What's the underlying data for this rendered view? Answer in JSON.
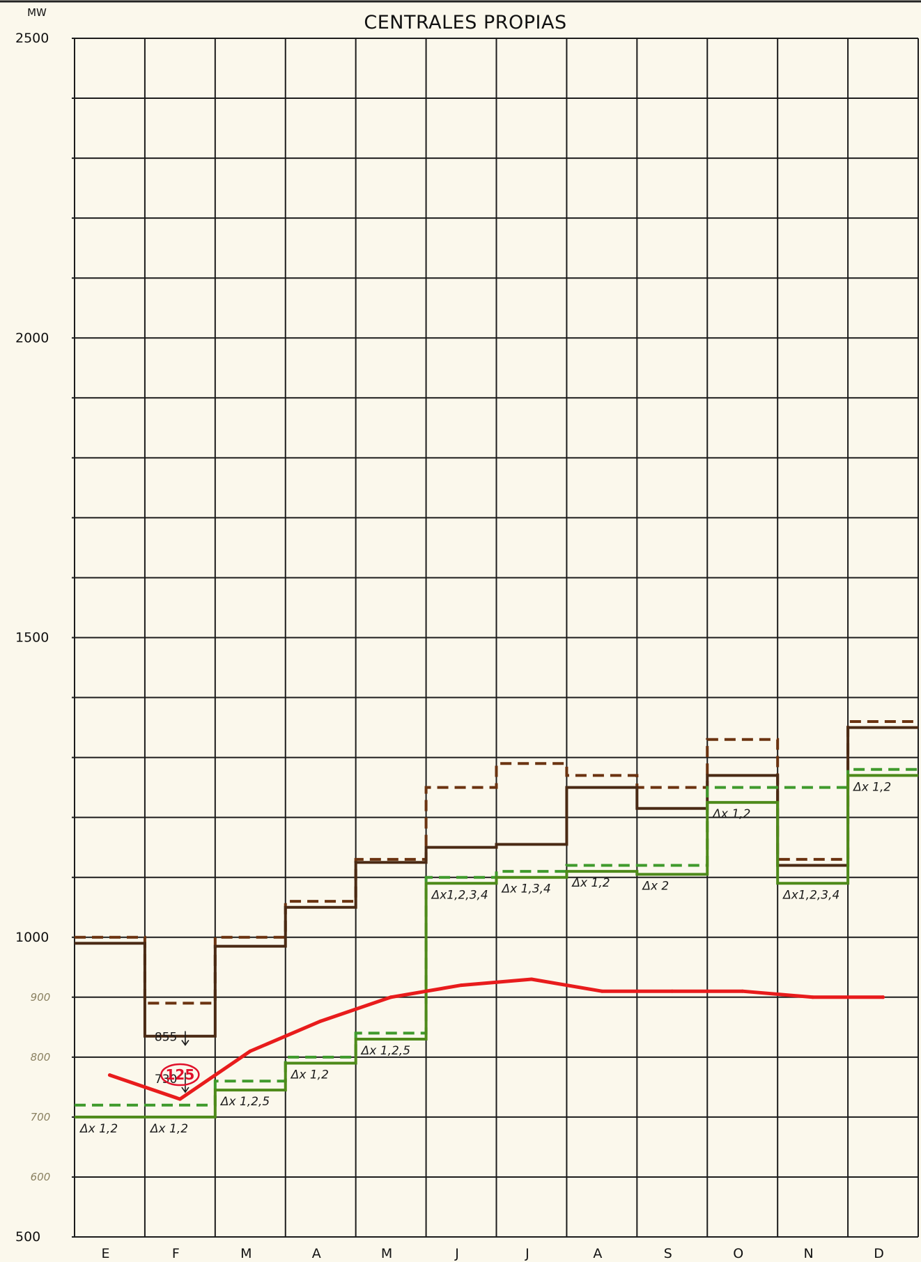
{
  "chart_data": {
    "type": "line",
    "title": "CENTRALES PROPIAS",
    "y_unit": "MW",
    "ylim": [
      500,
      2500
    ],
    "y_ticks": [
      "2500",
      "2000",
      "1500",
      "1000",
      "500"
    ],
    "y_pencil_ticks": [
      {
        "value": 900,
        "label": "900"
      },
      {
        "value": 800,
        "label": "800"
      },
      {
        "value": 700,
        "label": "700"
      },
      {
        "value": 600,
        "label": "600"
      }
    ],
    "categories": [
      "E",
      "F",
      "M",
      "A",
      "M",
      "J",
      "J",
      "A",
      "S",
      "O",
      "N",
      "D"
    ],
    "grid": true,
    "series": [
      {
        "style": "step-dashed",
        "color": "#6b3310",
        "values": [
          1000,
          890,
          1000,
          1060,
          1130,
          1250,
          1290,
          1270,
          1250,
          1330,
          1130,
          1360
        ]
      },
      {
        "style": "step-solid",
        "color": "#4a2a14",
        "values": [
          990,
          835,
          985,
          1050,
          1125,
          1150,
          1155,
          1250,
          1215,
          1270,
          1120,
          1350
        ]
      },
      {
        "style": "step-dashed",
        "color": "#3f9a2c",
        "values": [
          720,
          720,
          760,
          800,
          840,
          1100,
          1110,
          1120,
          1120,
          1250,
          1250,
          1280
        ]
      },
      {
        "style": "step-solid",
        "color": "#4e8a1a",
        "values": [
          700,
          700,
          745,
          790,
          830,
          1090,
          1100,
          1110,
          1105,
          1225,
          1090,
          1270
        ]
      },
      {
        "style": "line",
        "color": "#e81c1c",
        "values": [
          770,
          730,
          810,
          860,
          900,
          920,
          930,
          910,
          910,
          910,
          900,
          900
        ]
      }
    ],
    "segment_labels": [
      {
        "month": 0,
        "text": "Δx 1,2"
      },
      {
        "month": 1,
        "text": "Δx 1,2"
      },
      {
        "month": 2,
        "text": "Δx 1,2,5"
      },
      {
        "month": 3,
        "text": "Δx 1,2"
      },
      {
        "month": 4,
        "text": "Δx 1,2,5"
      },
      {
        "month": 5,
        "text": "Δx1,2,3,4"
      },
      {
        "month": 6,
        "text": "Δx 1,3,4"
      },
      {
        "month": 7,
        "text": "Δx 1,2"
      },
      {
        "month": 8,
        "text": "Δx 2"
      },
      {
        "month": 9,
        "text": "Δx 1,2"
      },
      {
        "month": 10,
        "text": "Δx1,2,3,4"
      },
      {
        "month": 11,
        "text": "Δx 1,2"
      }
    ],
    "annotations": [
      {
        "text": "855",
        "value": 855,
        "month": 1
      },
      {
        "text": "730",
        "value": 730,
        "month": 1
      },
      {
        "text": "125",
        "value": 125,
        "month": 1,
        "color": "#e0102a",
        "circled": true
      }
    ]
  }
}
